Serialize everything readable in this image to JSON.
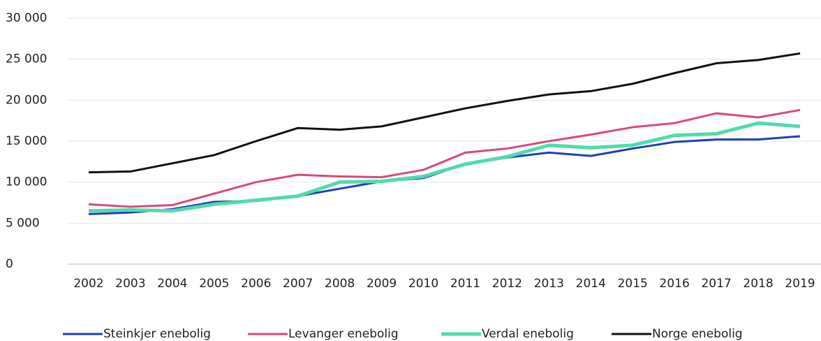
{
  "chart_data": {
    "type": "line",
    "categories": [
      "2002",
      "2003",
      "2004",
      "2005",
      "2006",
      "2007",
      "2008",
      "2009",
      "2010",
      "2011",
      "2012",
      "2013",
      "2014",
      "2015",
      "2016",
      "2017",
      "2018",
      "2019"
    ],
    "series": [
      {
        "name": "Steinkjer enebolig",
        "color": "#1f3fb8",
        "values": [
          6100,
          6300,
          6700,
          7600,
          7700,
          8300,
          9200,
          10100,
          10500,
          12200,
          13000,
          13600,
          13200,
          14100,
          14900,
          15200,
          15200,
          15600
        ]
      },
      {
        "name": "Levanger enebolig",
        "color": "#d9487f",
        "values": [
          7300,
          7000,
          7200,
          8600,
          10000,
          10900,
          10700,
          10600,
          11500,
          13600,
          14100,
          15000,
          15800,
          16700,
          17200,
          18400,
          17900,
          18800
        ]
      },
      {
        "name": "Verdal enebolig",
        "color": "#4fdcab",
        "values": [
          6500,
          6600,
          6500,
          7300,
          7800,
          8300,
          10000,
          10100,
          10700,
          12200,
          13100,
          14500,
          14200,
          14500,
          15700,
          15900,
          17200,
          16800
        ]
      },
      {
        "name": "Norge enebolig",
        "color": "#111111",
        "values": [
          11200,
          11300,
          12300,
          13300,
          15000,
          16600,
          16400,
          16800,
          17900,
          19000,
          19900,
          20700,
          21100,
          22000,
          23300,
          24500,
          24900,
          25700
        ]
      }
    ],
    "ylim": [
      0,
      30000
    ],
    "yticks": [
      0,
      {
        "value": 5000,
        "label": "5 000"
      },
      {
        "value": 10000,
        "label": "10 000"
      },
      {
        "value": 15000,
        "label": "15 000"
      },
      {
        "value": 20000,
        "label": "20 000"
      },
      {
        "value": 25000,
        "label": "25 000"
      },
      {
        "value": 30000,
        "label": "30 000"
      }
    ],
    "grid": true,
    "legend": "bottom"
  }
}
